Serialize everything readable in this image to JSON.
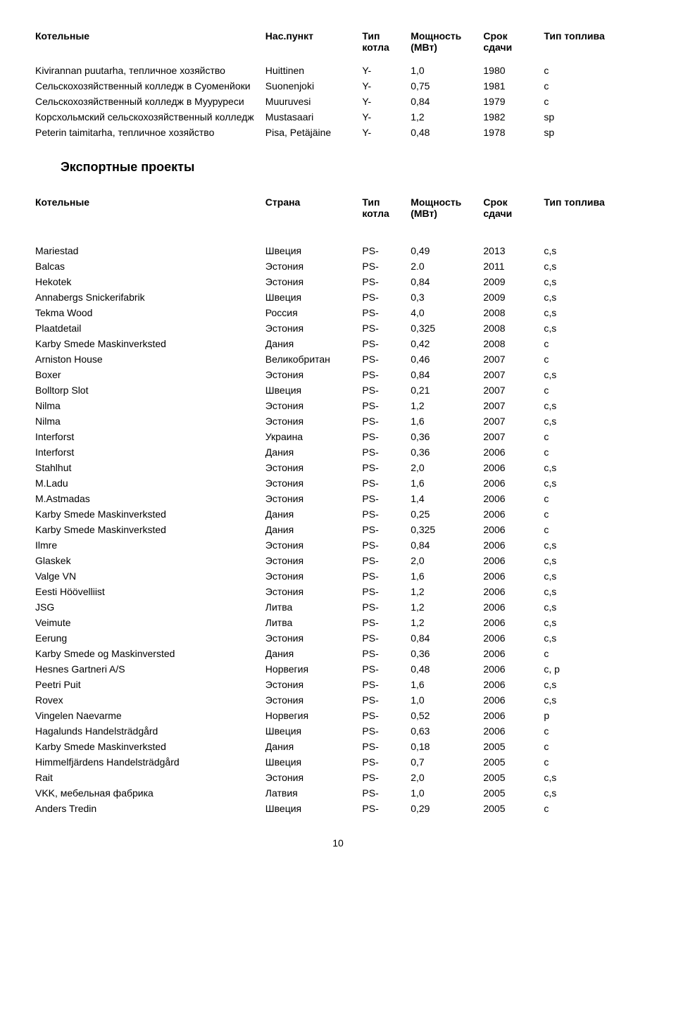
{
  "table1": {
    "headers": {
      "name": "Котельные",
      "place": "Нас.пункт",
      "type": "Тип котла",
      "power": "Мощность (МВт)",
      "year": "Срок сдачи",
      "fuel": "Тип топлива"
    },
    "rows": [
      {
        "name": "Kivirannan puutarha, тепличное хозяйство",
        "place": "Huittinen",
        "type": "Y-",
        "power": "1,0",
        "year": "1980",
        "fuel": "c"
      },
      {
        "name": "Сельскохозяйственный колледж в Суоменйоки",
        "place": "Suonenjoki",
        "type": "Y-",
        "power": "0,75",
        "year": "1981",
        "fuel": "c"
      },
      {
        "name": "Сельскохозяйственный колледж в Мууруреси",
        "place": "Muuruvesi",
        "type": "Y-",
        "power": "0,84",
        "year": "1979",
        "fuel": "c"
      },
      {
        "name": "Корсхольмский сельскохозяйственный колледж",
        "place": "Mustasaari",
        "type": "Y-",
        "power": "1,2",
        "year": "1982",
        "fuel": "sp"
      },
      {
        "name": "Peterin taimitarha, тепличное хозяйство",
        "place": "Pisa, Petäjäine",
        "type": "Y-",
        "power": "0,48",
        "year": "1978",
        "fuel": "sp"
      }
    ]
  },
  "heading_export": "Экспортные проекты",
  "table2": {
    "headers": {
      "name": "Котельные",
      "place": "Страна",
      "type": "Тип котла",
      "power": "Мощность (МВт)",
      "year": "Срок сдачи",
      "fuel": "Тип топлива"
    },
    "rows": [
      {
        "name": "Mariestad",
        "place": "Швеция",
        "type": "PS-",
        "power": "0,49",
        "year": "2013",
        "fuel": "c,s"
      },
      {
        "name": "Balcas",
        "place": "Эстония",
        "type": "PS-",
        "power": "2.0",
        "year": "2011",
        "fuel": "c,s"
      },
      {
        "name": "Hekotek",
        "place": "Эстония",
        "type": "PS-",
        "power": "0,84",
        "year": "2009",
        "fuel": "c,s"
      },
      {
        "name": "Annabergs Snickerifabrik",
        "place": "Швеция",
        "type": "PS-",
        "power": "0,3",
        "year": "2009",
        "fuel": "c,s"
      },
      {
        "name": "Tekma Wood",
        "place": "Россия",
        "type": "PS-",
        "power": "4,0",
        "year": "2008",
        "fuel": "c,s"
      },
      {
        "name": "Plaatdetail",
        "place": "Эстония",
        "type": "PS-",
        "power": "0,325",
        "year": "2008",
        "fuel": "c,s"
      },
      {
        "name": "Karby Smede Maskinverksted",
        "place": "Дания",
        "type": "PS-",
        "power": "0,42",
        "year": "2008",
        "fuel": "c"
      },
      {
        "name": "Arniston House",
        "place": "Великобритан",
        "type": "PS-",
        "power": "0,46",
        "year": "2007",
        "fuel": "c"
      },
      {
        "name": "Boxer",
        "place": "Эстония",
        "type": "PS-",
        "power": "0,84",
        "year": "2007",
        "fuel": "c,s"
      },
      {
        "name": "Bolltorp Slot",
        "place": "Швеция",
        "type": "PS-",
        "power": "0,21",
        "year": "2007",
        "fuel": "c"
      },
      {
        "name": "Nilma",
        "place": "Эстония",
        "type": "PS-",
        "power": "1,2",
        "year": "2007",
        "fuel": "c,s"
      },
      {
        "name": "Nilma",
        "place": "Эстония",
        "type": "PS-",
        "power": "1,6",
        "year": "2007",
        "fuel": "c,s"
      },
      {
        "name": "Interforst",
        "place": "Украина",
        "type": "PS-",
        "power": "0,36",
        "year": "2007",
        "fuel": "c"
      },
      {
        "name": "Interforst",
        "place": "Дания",
        "type": "PS-",
        "power": "0,36",
        "year": "2006",
        "fuel": "c"
      },
      {
        "name": "Stahlhut",
        "place": "Эстония",
        "type": "PS-",
        "power": "2,0",
        "year": "2006",
        "fuel": "c,s"
      },
      {
        "name": "M.Ladu",
        "place": "Эстония",
        "type": "PS-",
        "power": "1,6",
        "year": "2006",
        "fuel": "c,s"
      },
      {
        "name": "M.Astmadas",
        "place": "Эстония",
        "type": "PS-",
        "power": "1,4",
        "year": "2006",
        "fuel": "c"
      },
      {
        "name": "Karby Smede Maskinverksted",
        "place": "Дания",
        "type": "PS-",
        "power": "0,25",
        "year": "2006",
        "fuel": "c"
      },
      {
        "name": "Karby Smede Maskinverksted",
        "place": "Дания",
        "type": "PS-",
        "power": "0,325",
        "year": "2006",
        "fuel": "c"
      },
      {
        "name": "Ilmre",
        "place": "Эстония",
        "type": "PS-",
        "power": "0,84",
        "year": "2006",
        "fuel": "c,s"
      },
      {
        "name": "Glaskek",
        "place": "Эстония",
        "type": "PS-",
        "power": "2,0",
        "year": "2006",
        "fuel": "c,s"
      },
      {
        "name": "Valge VN",
        "place": "Эстония",
        "type": "PS-",
        "power": "1,6",
        "year": "2006",
        "fuel": "c,s"
      },
      {
        "name": "Eesti Höövelliist",
        "place": "Эстония",
        "type": "PS-",
        "power": "1,2",
        "year": "2006",
        "fuel": "c,s"
      },
      {
        "name": "JSG",
        "place": "Литва",
        "type": "PS-",
        "power": "1,2",
        "year": "2006",
        "fuel": "c,s"
      },
      {
        "name": "Veimute",
        "place": "Литва",
        "type": "PS-",
        "power": "1,2",
        "year": "2006",
        "fuel": "c,s"
      },
      {
        "name": "Eerung",
        "place": "Эстония",
        "type": "PS-",
        "power": "0,84",
        "year": "2006",
        "fuel": "c,s"
      },
      {
        "name": "Karby Smede og Maskinversted",
        "place": "Дания",
        "type": "PS-",
        "power": "0,36",
        "year": "2006",
        "fuel": "c"
      },
      {
        "name": "Hesnes Gartneri A/S",
        "place": "Норвегия",
        "type": "PS-",
        "power": "0,48",
        "year": "2006",
        "fuel": "c, p"
      },
      {
        "name": "Peetri Puit",
        "place": "Эстония",
        "type": "PS-",
        "power": "1,6",
        "year": "2006",
        "fuel": "c,s"
      },
      {
        "name": "Rovex",
        "place": "Эстония",
        "type": "PS-",
        "power": "1,0",
        "year": "2006",
        "fuel": "c,s"
      },
      {
        "name": "Vingelen Naevarme",
        "place": "Норвегия",
        "type": "PS-",
        "power": "0,52",
        "year": "2006",
        "fuel": "p"
      },
      {
        "name": "Hagalunds Handelsträdgård",
        "place": "Швеция",
        "type": "PS-",
        "power": "0,63",
        "year": "2006",
        "fuel": "c"
      },
      {
        "name": "Karby Smede Maskinverksted",
        "place": "Дания",
        "type": "PS-",
        "power": "0,18",
        "year": "2005",
        "fuel": "c"
      },
      {
        "name": "Himmelfjärdens Handelsträdgård",
        "place": "Швеция",
        "type": "PS-",
        "power": "0,7",
        "year": "2005",
        "fuel": "c"
      },
      {
        "name": "Rait",
        "place": "Эстония",
        "type": "PS-",
        "power": "2,0",
        "year": "2005",
        "fuel": "c,s"
      },
      {
        "name": "VKK, мебельная фабрика",
        "place": "Латвия",
        "type": "PS-",
        "power": "1,0",
        "year": "2005",
        "fuel": "c,s"
      },
      {
        "name": "Anders Tredin",
        "place": "Швеция",
        "type": "PS-",
        "power": "0,29",
        "year": "2005",
        "fuel": "c"
      }
    ]
  },
  "page_number": "10"
}
